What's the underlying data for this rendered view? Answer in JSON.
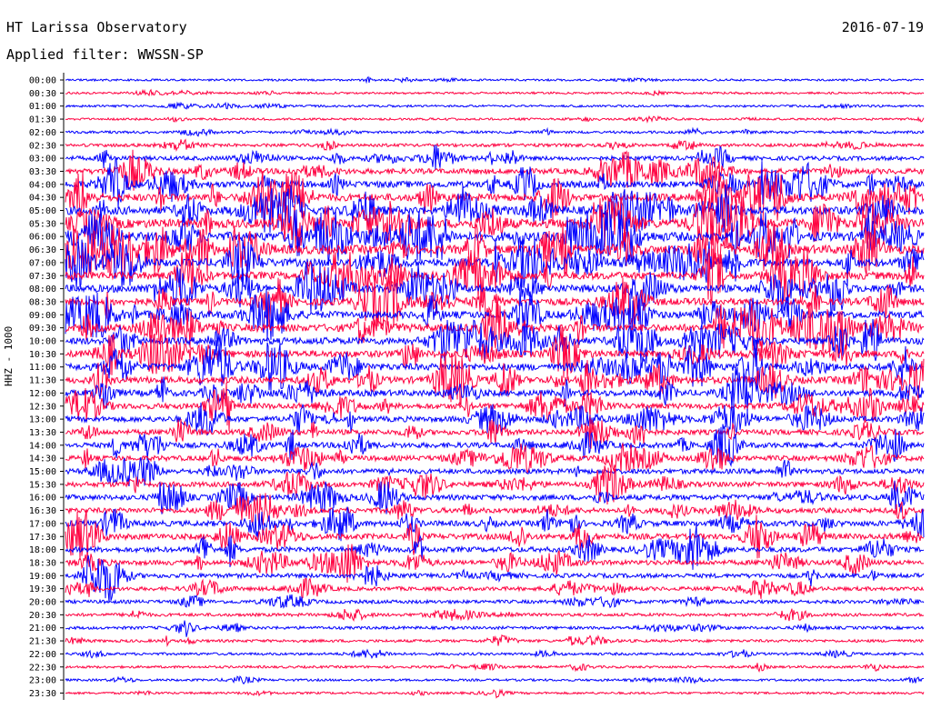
{
  "header": {
    "station": "HT Larissa Observatory",
    "date": "2016-07-19",
    "filter_prefix": "Applied filter:",
    "filter_name": "WWSSN-SP"
  },
  "chart_data": {
    "type": "line",
    "title": "HT Larissa Observatory",
    "subtitle": "Applied filter: WWSSN-SP",
    "ylabel": "HHZ - 1000",
    "xlabel": "",
    "date": "2016-07-19",
    "row_labels": [
      "00:00",
      "00:30",
      "01:00",
      "01:30",
      "02:00",
      "02:30",
      "03:00",
      "03:30",
      "04:00",
      "04:30",
      "05:00",
      "05:30",
      "06:00",
      "06:30",
      "07:00",
      "07:30",
      "08:00",
      "08:30",
      "09:00",
      "09:30",
      "10:00",
      "10:30",
      "11:00",
      "11:30",
      "12:00",
      "12:30",
      "13:00",
      "13:30",
      "14:00",
      "14:30",
      "15:00",
      "15:30",
      "16:00",
      "16:30",
      "17:00",
      "17:30",
      "18:00",
      "18:30",
      "19:00",
      "19:30",
      "20:00",
      "20:30",
      "21:00",
      "21:30",
      "22:00",
      "22:30",
      "23:00",
      "23:30"
    ],
    "row_colors": [
      "#0000ff",
      "#ff0040"
    ],
    "activity_level": [
      0.06,
      0.07,
      0.08,
      0.08,
      0.12,
      0.18,
      0.3,
      0.42,
      0.55,
      0.62,
      0.72,
      0.8,
      0.82,
      0.78,
      0.7,
      0.66,
      0.64,
      0.6,
      0.62,
      0.64,
      0.6,
      0.56,
      0.58,
      0.56,
      0.52,
      0.46,
      0.44,
      0.4,
      0.42,
      0.4,
      0.38,
      0.4,
      0.42,
      0.4,
      0.44,
      0.46,
      0.4,
      0.36,
      0.32,
      0.26,
      0.22,
      0.18,
      0.16,
      0.14,
      0.12,
      0.1,
      0.09,
      0.08
    ],
    "grid": false,
    "legend": "none"
  }
}
